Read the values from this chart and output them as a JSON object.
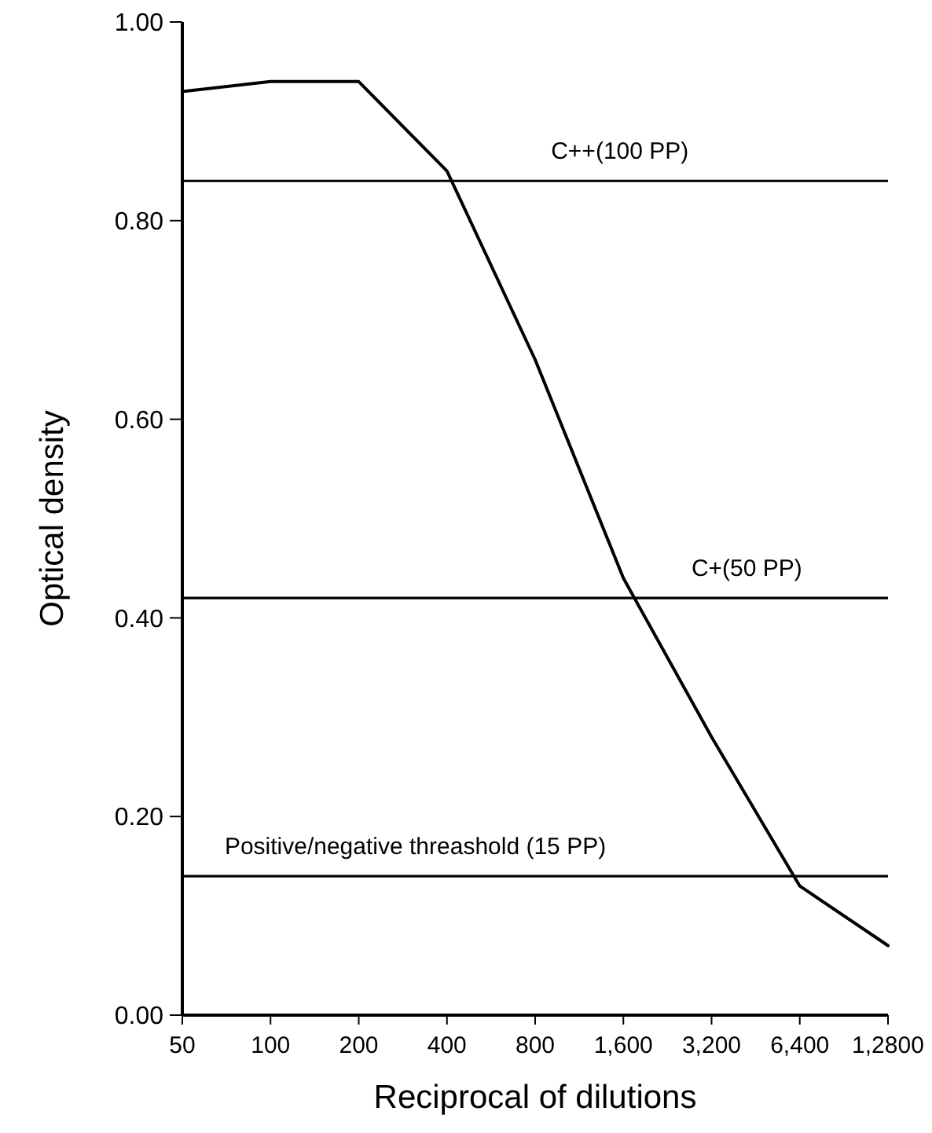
{
  "chart_data": {
    "type": "line",
    "xlabel": "Reciprocal of dilutions",
    "ylabel": "Optical density",
    "categories": [
      "50",
      "100",
      "200",
      "400",
      "800",
      "1,600",
      "3,200",
      "6,400",
      "1,2800"
    ],
    "series": [
      {
        "color": "#000000",
        "values": [
          0.93,
          0.94,
          0.94,
          0.85,
          0.66,
          0.44,
          0.28,
          0.13,
          0.07
        ]
      }
    ],
    "ylim": [
      0,
      1
    ],
    "yticks": [
      {
        "value": 0,
        "label": "0.00"
      },
      {
        "value": 0.2,
        "label": "0.20"
      },
      {
        "value": 0.4,
        "label": "0.40"
      },
      {
        "value": 0.6,
        "label": "0.60"
      },
      {
        "value": 0.8,
        "label": "0.80"
      },
      {
        "value": 1,
        "label": "1.00"
      }
    ],
    "ref_lines": [
      {
        "axis": "y",
        "value": 0.84,
        "label": "C++(100 PP)",
        "color": "#000000"
      },
      {
        "axis": "y",
        "value": 0.42,
        "label": "C+(50 PP)",
        "color": "#000000"
      },
      {
        "axis": "y",
        "value": 0.14,
        "label": "Positive/negative threashold (15 PP)",
        "color": "#000000"
      }
    ],
    "grid": false,
    "marker": "none",
    "line_style": "solid"
  }
}
